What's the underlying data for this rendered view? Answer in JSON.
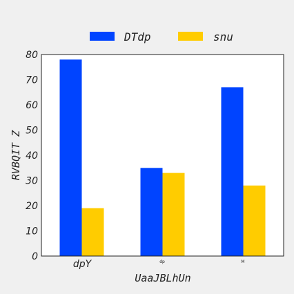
{
  "chart_data": {
    "type": "bar",
    "categories": [
      "dpY",
      "dp",
      "M"
    ],
    "series": [
      {
        "name": "DTdp",
        "values": [
          78,
          35,
          67
        ],
        "color": "#0044ff"
      },
      {
        "name": "snu",
        "values": [
          19,
          33,
          28
        ],
        "color": "#ffcc00"
      }
    ],
    "xlabel": "UaaJBLhUn",
    "ylabel": "RVBQIT Z",
    "ylim": [
      0,
      80
    ],
    "yticks": [
      0,
      10,
      20,
      30,
      40,
      50,
      60,
      70,
      80
    ],
    "grid": false,
    "legend_position": "top"
  }
}
